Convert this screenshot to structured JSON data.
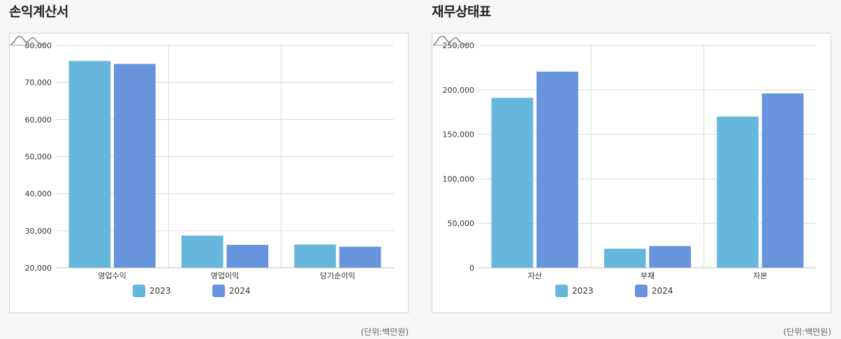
{
  "page": {
    "unit_label": "(단위:백만원)"
  },
  "colors": {
    "y2023": "#67b6dc",
    "y2024": "#6894dd"
  },
  "charts": [
    {
      "id": "income",
      "title": "손익계산서",
      "chart_data": {
        "type": "bar",
        "title": "손익계산서",
        "categories": [
          "영업수익",
          "영업이익",
          "당기순이익"
        ],
        "series": [
          {
            "name": "2023",
            "values": [
              75800,
              28700,
              26300
            ]
          },
          {
            "name": "2024",
            "values": [
              75000,
              26200,
              25700
            ]
          }
        ],
        "ylim": [
          20000,
          80000
        ],
        "yticks": [
          20000,
          30000,
          40000,
          50000,
          60000,
          70000,
          80000
        ],
        "ytick_labels": [
          "20,000",
          "30,000",
          "40,000",
          "50,000",
          "60,000",
          "70,000",
          "80,000"
        ],
        "grid": true,
        "legend": "bottom"
      }
    },
    {
      "id": "balance",
      "title": "재무상태표",
      "chart_data": {
        "type": "bar",
        "title": "재무상태표",
        "categories": [
          "자산",
          "부채",
          "자본"
        ],
        "series": [
          {
            "name": "2023",
            "values": [
              191000,
              21500,
              170000
            ]
          },
          {
            "name": "2024",
            "values": [
              220500,
              24500,
              196000
            ]
          }
        ],
        "ylim": [
          0,
          250000
        ],
        "yticks": [
          0,
          50000,
          100000,
          150000,
          200000,
          250000
        ],
        "ytick_labels": [
          "0",
          "50,000",
          "100,000",
          "150,000",
          "200,000",
          "250,000"
        ],
        "grid": true,
        "legend": "bottom"
      }
    }
  ]
}
